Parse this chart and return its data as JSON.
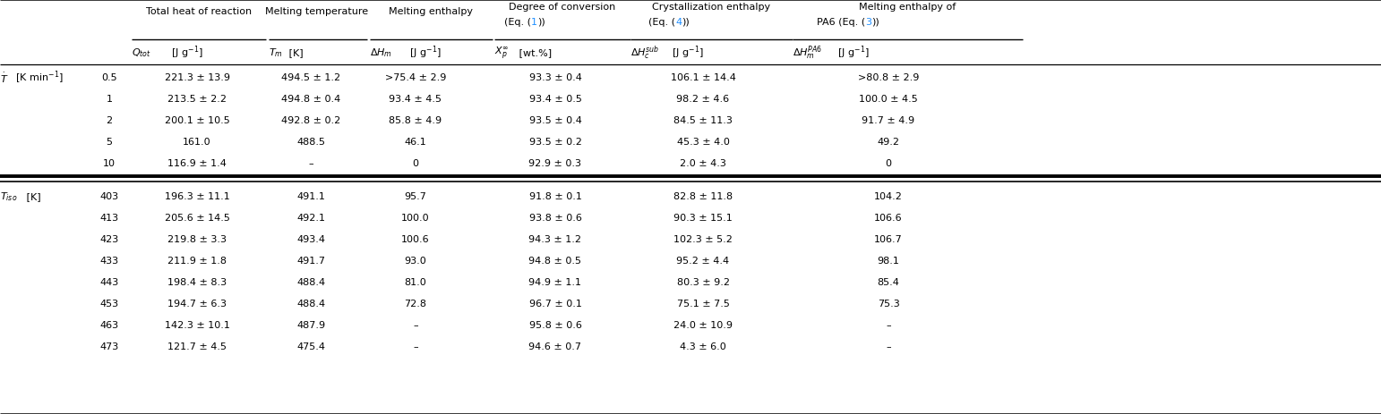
{
  "blue_color": "#1E8FFF",
  "fs": 8.0,
  "fig_width": 15.58,
  "fig_height": 4.72,
  "section1_rows": [
    [
      "0.5",
      "221.3 ± 13.9",
      "494.5 ± 1.2",
      ">75.4 ± 2.9",
      "93.3 ± 0.4",
      "106.1 ± 14.4",
      ">80.8 ± 2.9"
    ],
    [
      "1",
      "213.5 ± 2.2",
      "494.8 ± 0.4",
      "93.4 ± 4.5",
      "93.4 ± 0.5",
      "98.2 ± 4.6",
      "100.0 ± 4.5"
    ],
    [
      "2",
      "200.1 ± 10.5",
      "492.8 ± 0.2",
      "85.8 ± 4.9",
      "93.5 ± 0.4",
      "84.5 ± 11.3",
      "91.7 ± 4.9"
    ],
    [
      "5",
      "161.0",
      "488.5",
      "46.1",
      "93.5 ± 0.2",
      "45.3 ± 4.0",
      "49.2"
    ],
    [
      "10",
      "116.9 ± 1.4",
      "–",
      "0",
      "92.9 ± 0.3",
      "2.0 ± 4.3",
      "0"
    ]
  ],
  "section2_rows": [
    [
      "403",
      "196.3 ± 11.1",
      "491.1",
      "95.7",
      "91.8 ± 0.1",
      "82.8 ± 11.8",
      "104.2"
    ],
    [
      "413",
      "205.6 ± 14.5",
      "492.1",
      "100.0",
      "93.8 ± 0.6",
      "90.3 ± 15.1",
      "106.6"
    ],
    [
      "423",
      "219.8 ± 3.3",
      "493.4",
      "100.6",
      "94.3 ± 1.2",
      "102.3 ± 5.2",
      "106.7"
    ],
    [
      "433",
      "211.9 ± 1.8",
      "491.7",
      "93.0",
      "94.8 ± 0.5",
      "95.2 ± 4.4",
      "98.1"
    ],
    [
      "443",
      "198.4 ± 8.3",
      "488.4",
      "81.0",
      "94.9 ± 1.1",
      "80.3 ± 9.2",
      "85.4"
    ],
    [
      "453",
      "194.7 ± 6.3",
      "488.4",
      "72.8",
      "96.7 ± 0.1",
      "75.1 ± 7.5",
      "75.3"
    ],
    [
      "463",
      "142.3 ± 10.1",
      "487.9",
      "–",
      "95.8 ± 0.6",
      "24.0 ± 10.9",
      "–"
    ],
    [
      "473",
      "121.7 ± 4.5",
      "475.4",
      "–",
      "94.6 ± 0.7",
      "4.3 ± 6.0",
      "–"
    ]
  ]
}
